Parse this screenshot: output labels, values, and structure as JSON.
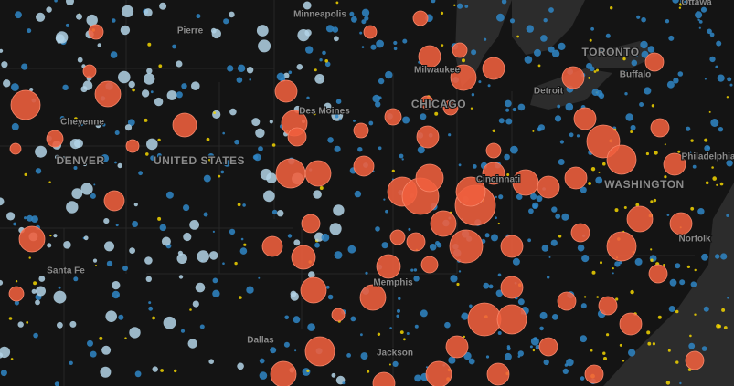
{
  "map": {
    "labels": [
      "Ottawa",
      "Minneapolis",
      "Pierre",
      "TORONTO",
      "Buffalo",
      "Milwaukee",
      "CHICAGO",
      "Detroit",
      "Cheyenne",
      "DENVER",
      "UNITED STATES",
      "Des Moines",
      "Philadelphia",
      "WASHINGTON",
      "Cincinnati",
      "Norfolk",
      "Santa Fe",
      "Memphis",
      "Dallas",
      "Jackson"
    ]
  }
}
